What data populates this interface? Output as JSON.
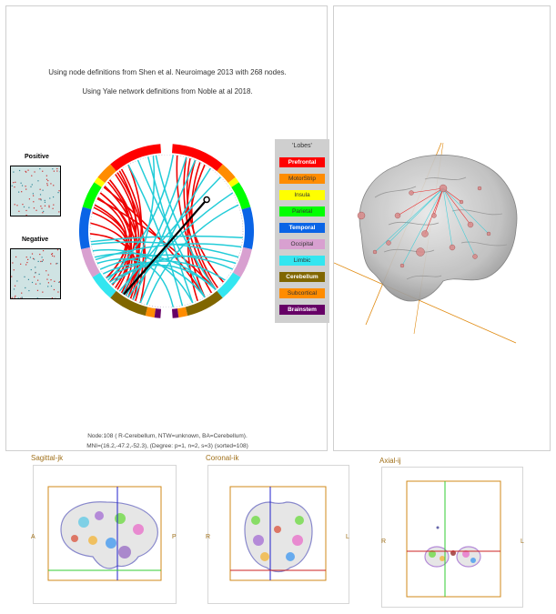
{
  "connectome": {
    "def_line1": "Using node definitions from Shen et al. Neuroimage 2013 with 268 nodes.",
    "def_line2": "Using Yale network definitions from Noble at al 2018.",
    "positive_label": "Positive",
    "negative_label": "Negative",
    "info_line1": "Node:108 ( R-Cerebellum, NTW=unknown, BA=Cerebellum).",
    "info_line2": "MNI=(16.2,-47.2,-52.3), (Degree: p=1, n=2, s=3)  (sorted=108)"
  },
  "legend": {
    "title": "'Lobes'",
    "items": [
      {
        "label": "Prefrontal",
        "color": "#ff0000",
        "text_color": "#ffffff",
        "bold": true
      },
      {
        "label": "MotorStrip",
        "color": "#ff8c00",
        "text_color": "#333333",
        "bold": false
      },
      {
        "label": "Insula",
        "color": "#ffff00",
        "text_color": "#333333",
        "bold": false
      },
      {
        "label": "Parietal",
        "color": "#00ff00",
        "text_color": "#333333",
        "bold": false
      },
      {
        "label": "Temporal",
        "color": "#0a64e6",
        "text_color": "#ffffff",
        "bold": true
      },
      {
        "label": "Occipital",
        "color": "#d8a0d0",
        "text_color": "#333333",
        "bold": false
      },
      {
        "label": "Limbic",
        "color": "#33e6f0",
        "text_color": "#333333",
        "bold": false
      },
      {
        "label": "Cerebellum",
        "color": "#806600",
        "text_color": "#ffffff",
        "bold": true
      },
      {
        "label": "Subcortical",
        "color": "#ff8c00",
        "text_color": "#333333",
        "bold": false
      },
      {
        "label": "Brainstem",
        "color": "#660066",
        "text_color": "#ffffff",
        "bold": true
      }
    ]
  },
  "slices": {
    "sagittal": {
      "title": "Sagittal-jk",
      "left": "A",
      "right": "P"
    },
    "coronal": {
      "title": "Coronal-ik",
      "left": "R",
      "right": "L"
    },
    "axial": {
      "title": "Axial-ij",
      "left": "R",
      "right": "L"
    }
  },
  "colors": {
    "positive_edge": "#ee0000",
    "negative_edge": "#22ccd8",
    "selected_line": "#000000",
    "crosshair_v": "#2222cc",
    "crosshair_h": "#cc2222",
    "crosshair_green": "#33cc33",
    "frame": "#d08a1a"
  }
}
